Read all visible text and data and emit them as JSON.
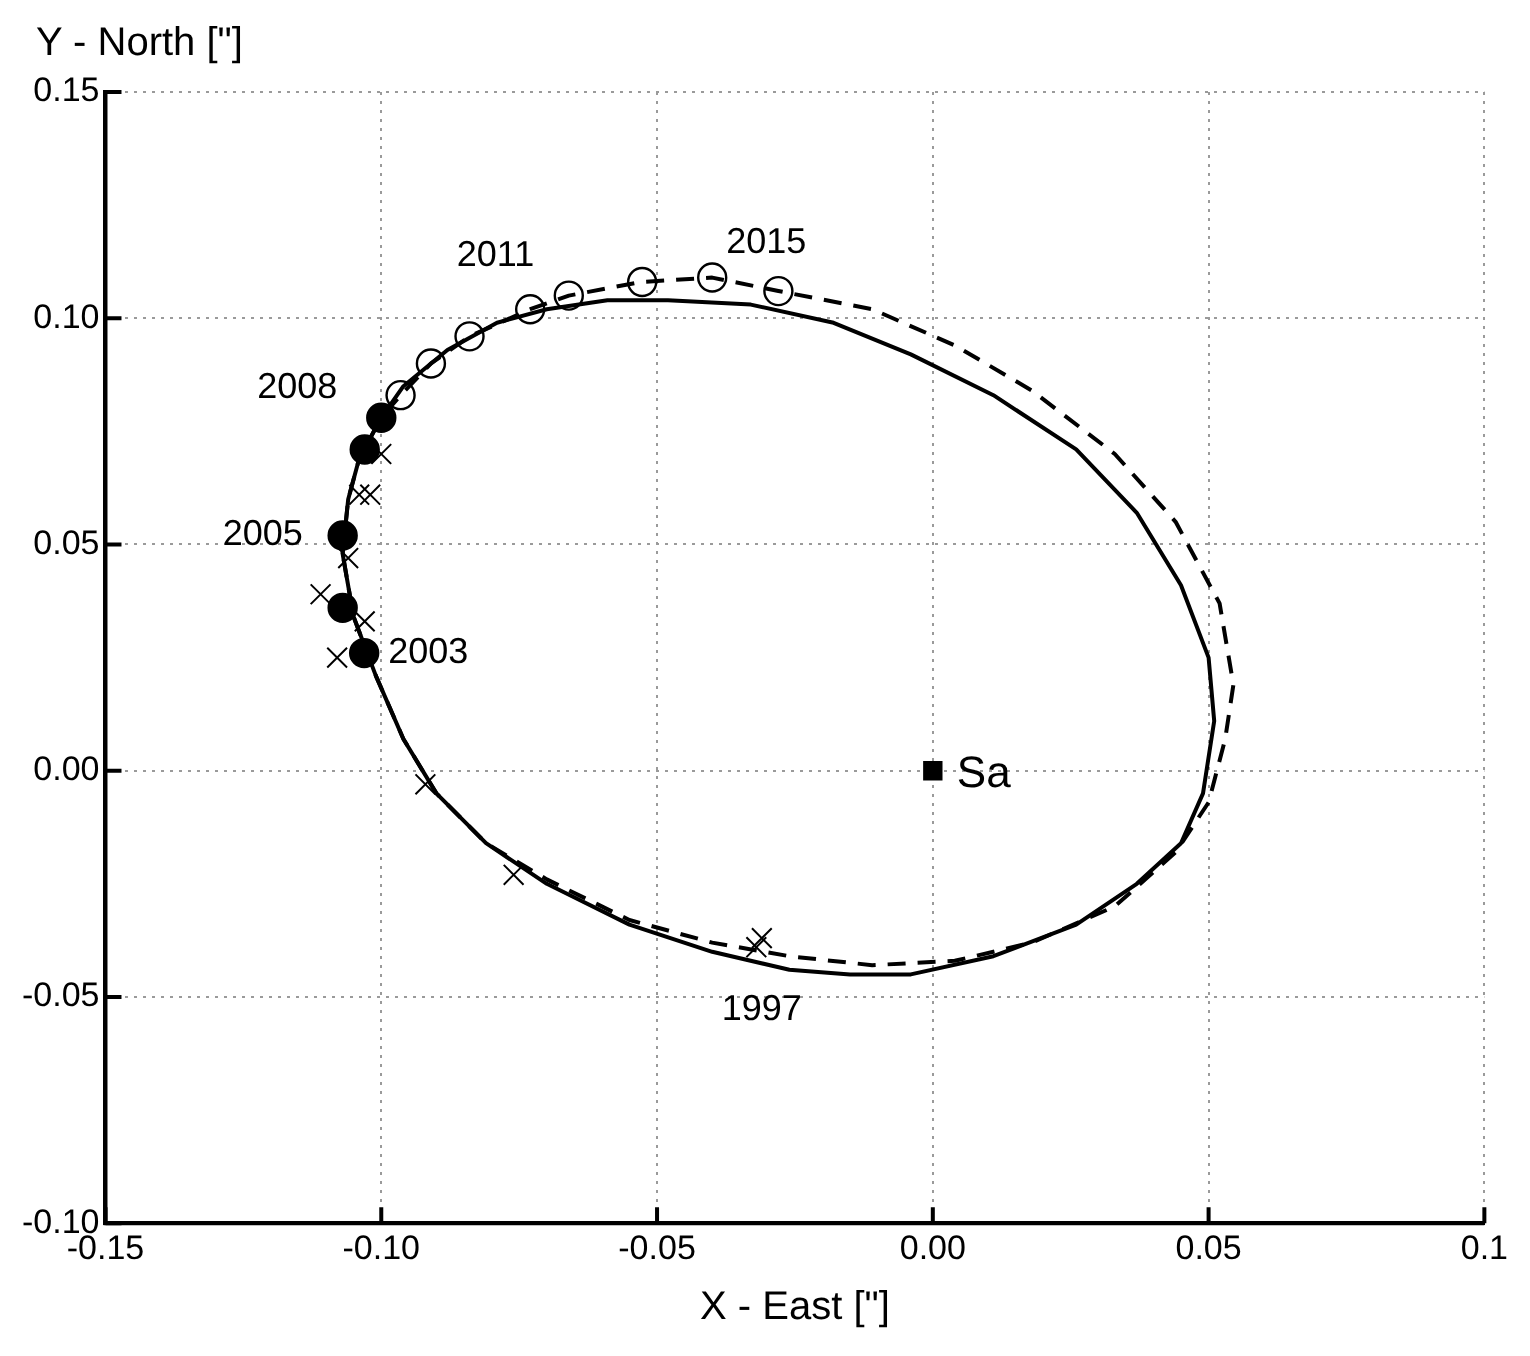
{
  "chart_data": {
    "type": "scatter",
    "xlabel": "X - East [\"]",
    "ylabel": "Y - North [\"]",
    "xlim": [
      -0.15,
      0.1
    ],
    "ylim": [
      -0.1,
      0.15
    ],
    "xticks": [
      -0.15,
      {
        "value": -0.1,
        "label": "-0.10"
      },
      -0.05,
      {
        "value": 0,
        "label": "0.00"
      },
      0.05,
      0.1
    ],
    "yticks": [
      {
        "value": -0.1,
        "label": "-0.10"
      },
      -0.05,
      {
        "value": 0,
        "label": "0.00"
      },
      0.05,
      {
        "value": 0.1,
        "label": "0.10"
      },
      0.15
    ],
    "grid": true,
    "legend": false,
    "series": [
      {
        "type": "scatter",
        "marker": "cross",
        "color": "#000000",
        "x": [
          -0.1,
          -0.104,
          -0.102,
          -0.106,
          -0.111,
          -0.103,
          -0.108,
          -0.092,
          -0.076,
          -0.031,
          -0.032
        ],
        "values": [
          0.07,
          0.061,
          0.061,
          0.047,
          0.039,
          0.033,
          0.025,
          -0.003,
          -0.023,
          -0.037,
          -0.039
        ]
      },
      {
        "type": "scatter",
        "marker": "circle",
        "color": "#000000",
        "x": [
          -0.1031,
          -0.107,
          -0.107,
          -0.103,
          -0.1
        ],
        "values": [
          0.026,
          0.036,
          0.052,
          0.071,
          0.078
        ]
      },
      {
        "type": "scatter",
        "marker": "circle",
        "color": "#ffffff",
        "x": [
          -0.0965,
          -0.091,
          -0.084,
          -0.073,
          -0.066,
          -0.0527,
          -0.04,
          -0.028
        ],
        "values": [
          0.083,
          0.09,
          0.096,
          0.102,
          0.105,
          0.108,
          0.109,
          0.106
        ]
      },
      {
        "type": "scatter",
        "marker": "square",
        "name": "Sa",
        "color": "#000000",
        "x": [
          0
        ],
        "values": [
          0
        ]
      }
    ],
    "annotations": [
      {
        "text": "2003",
        "x": -0.1031,
        "y": 0.026
      },
      {
        "text": "2005",
        "x": -0.107,
        "y": 0.052
      },
      {
        "text": "2008",
        "x": -0.1,
        "y": 0.078
      },
      {
        "text": "2011",
        "x": -0.084,
        "y": 0.096
      },
      {
        "text": "2015",
        "x": -0.04,
        "y": 0.109
      },
      {
        "text": "1997",
        "x": -0.031,
        "y": -0.037
      }
    ]
  }
}
